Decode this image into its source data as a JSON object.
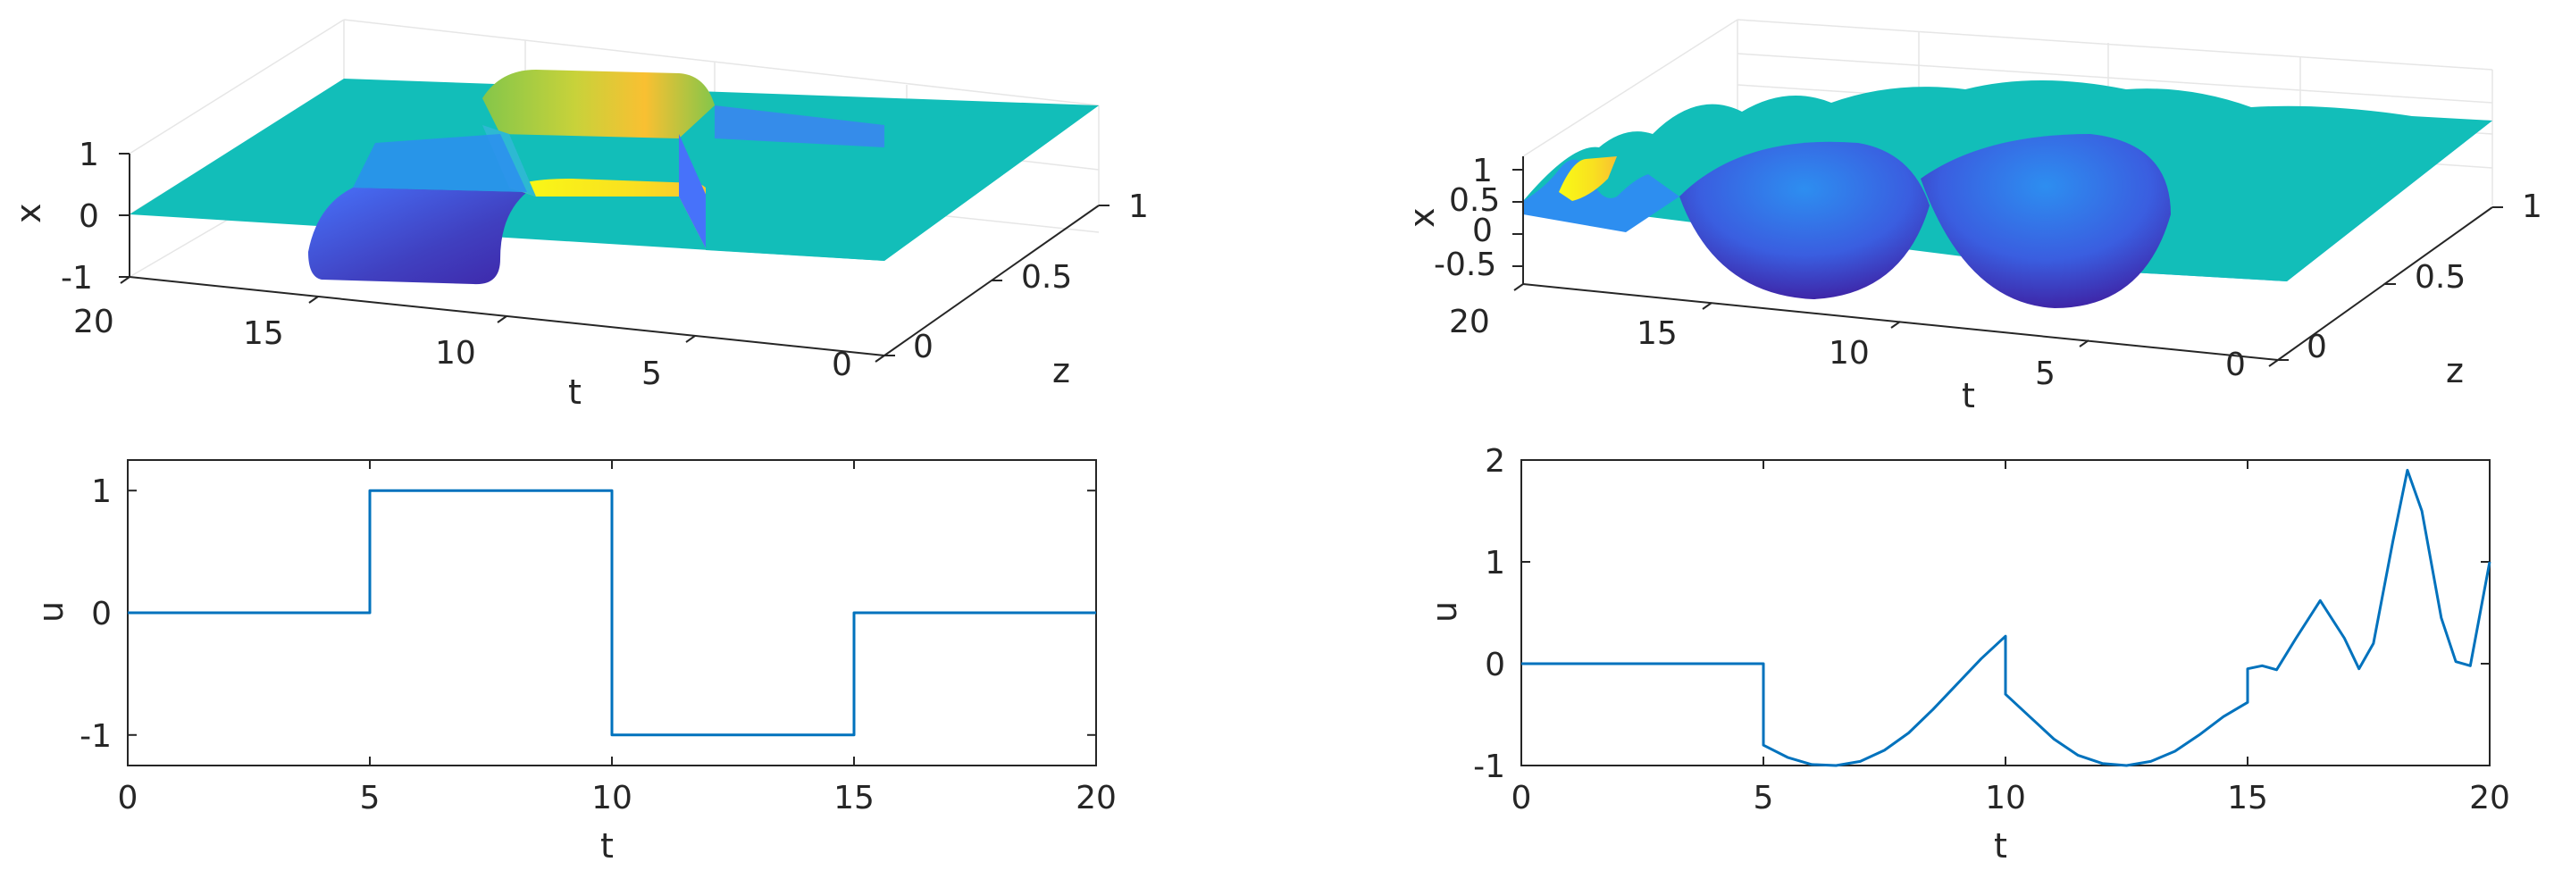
{
  "chart_data": [
    {
      "type": "surface",
      "panel": "top-left",
      "xlabel": "t",
      "ylabel": "z",
      "zlabel": "x",
      "t_ticks": [
        "20",
        "15",
        "10",
        "5",
        "0"
      ],
      "z_ticks": [
        "0",
        "0.5",
        "1"
      ],
      "x_ticks": [
        "-1",
        "0",
        "1"
      ],
      "t_range": [
        0,
        20
      ],
      "z_range": [
        0,
        1
      ],
      "x_range": [
        -1,
        1
      ],
      "surface_profile_t": [
        0,
        4.9,
        5,
        5.5,
        9.5,
        10,
        10.5,
        14.5,
        15,
        15.5,
        20
      ],
      "surface_profile_x": [
        0,
        0,
        -0.2,
        -1,
        -1,
        0.3,
        1,
        1,
        0.2,
        0,
        0
      ],
      "colormap": [
        "#3e26a8",
        "#4772fa",
        "#2db9d2",
        "#12beb9",
        "#84c64a",
        "#f9c032",
        "#f9fb15"
      ]
    },
    {
      "type": "surface",
      "panel": "top-right",
      "xlabel": "t",
      "ylabel": "z",
      "zlabel": "x",
      "t_ticks": [
        "20",
        "15",
        "10",
        "5",
        "0"
      ],
      "z_ticks": [
        "0",
        "0.5",
        "1"
      ],
      "x_ticks": [
        "-0.5",
        "0",
        "0.5",
        "1"
      ],
      "t_range": [
        0,
        20
      ],
      "z_range": [
        0,
        1
      ],
      "x_range": [
        -0.8,
        1.2
      ],
      "colormap": [
        "#3e26a8",
        "#4772fa",
        "#2db9d2",
        "#12beb9",
        "#84c64a",
        "#f9c032",
        "#f9fb15"
      ]
    },
    {
      "type": "line",
      "panel": "bottom-left",
      "xlabel": "t",
      "ylabel": "u",
      "x_ticks": [
        "0",
        "5",
        "10",
        "15",
        "20"
      ],
      "y_ticks": [
        "-1",
        "0",
        "1"
      ],
      "xlim": [
        0,
        20
      ],
      "ylim": [
        -1.25,
        1.25
      ],
      "series": [
        {
          "x": [
            0,
            5,
            5,
            10,
            10,
            15,
            15,
            20
          ],
          "y": [
            0,
            0,
            1,
            1,
            -1,
            -1,
            0,
            0
          ],
          "color": "#0072bd"
        }
      ]
    },
    {
      "type": "line",
      "panel": "bottom-right",
      "xlabel": "t",
      "ylabel": "u",
      "x_ticks": [
        "0",
        "5",
        "10",
        "15",
        "20"
      ],
      "y_ticks": [
        "-1",
        "0",
        "1",
        "2"
      ],
      "xlim": [
        0,
        20
      ],
      "ylim": [
        -1,
        2
      ],
      "series": [
        {
          "x": [
            0,
            5,
            5,
            5.5,
            6,
            6.5,
            7,
            7.5,
            8,
            8.5,
            9,
            9.5,
            10,
            10,
            10.5,
            11,
            11.5,
            12,
            12.5,
            13,
            13.5,
            14,
            14.5,
            15,
            15,
            15.3,
            15.6,
            16,
            16.5,
            17,
            17.3,
            17.6,
            18,
            18.3,
            18.6,
            19,
            19.3,
            19.6,
            20
          ],
          "y": [
            0,
            0,
            -0.8,
            -0.92,
            -0.99,
            -1,
            -0.96,
            -0.85,
            -0.68,
            -0.45,
            -0.2,
            0.05,
            0.27,
            -0.3,
            -0.52,
            -0.74,
            -0.9,
            -0.98,
            -1,
            -0.96,
            -0.86,
            -0.7,
            -0.52,
            -0.38,
            -0.05,
            -0.02,
            -0.06,
            0.25,
            0.62,
            0.25,
            -0.05,
            0.2,
            1.2,
            1.9,
            1.5,
            0.45,
            0.02,
            -0.02,
            1.0
          ],
          "color": "#0072bd"
        }
      ]
    }
  ]
}
